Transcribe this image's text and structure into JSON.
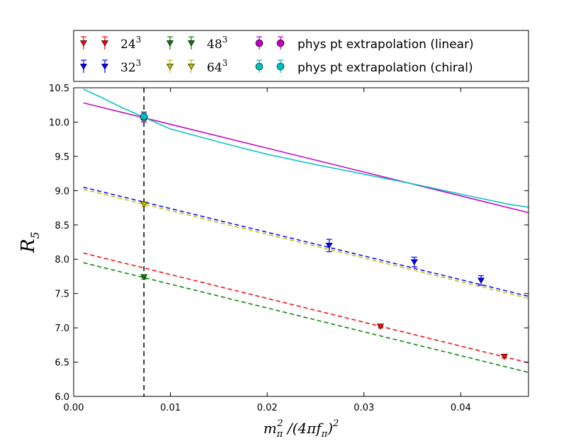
{
  "chart_data": {
    "type": "scatter",
    "title": "",
    "xlabel": "m_π² / (4π f_π)²",
    "ylabel": "R_5",
    "xlabel_parts": {
      "m": "m",
      "m_sub": "π",
      "m_sup": "2",
      "mid": " /(4π",
      "f": "f",
      "f_sub": "π",
      "close": ")",
      "close_sup": "2"
    },
    "ylabel_parts": {
      "R": "R",
      "R_sub": "5"
    },
    "xlim": [
      0.0,
      0.047
    ],
    "ylim": [
      6.0,
      10.5
    ],
    "xticks": [
      0.0,
      0.01,
      0.02,
      0.03,
      0.04
    ],
    "xtick_labels": [
      "0.00",
      "0.01",
      "0.02",
      "0.03",
      "0.04"
    ],
    "yticks": [
      6.0,
      6.5,
      7.0,
      7.5,
      8.0,
      8.5,
      9.0,
      9.5,
      10.0,
      10.5
    ],
    "ytick_labels": [
      "6.0",
      "6.5",
      "7.0",
      "7.5",
      "8.0",
      "8.5",
      "9.0",
      "9.5",
      "10.0",
      "10.5"
    ],
    "physical_point_x": 0.00726,
    "legend": {
      "position": "top, outside plot",
      "entries": [
        {
          "key": "24",
          "base": "24",
          "sup": "3",
          "color": "#ff0000",
          "marker": "triangle-down",
          "style": "math"
        },
        {
          "key": "32",
          "base": "32",
          "sup": "3",
          "color": "#0000ff",
          "marker": "triangle-down",
          "style": "math"
        },
        {
          "key": "48",
          "base": "48",
          "sup": "3",
          "color": "#008000",
          "marker": "triangle-down",
          "style": "math"
        },
        {
          "key": "64",
          "base": "64",
          "sup": "3",
          "color": "#bfbf00",
          "marker": "triangle-down",
          "style": "math"
        },
        {
          "key": "lin",
          "label": "phys pt extrapolation (linear)",
          "color": "#bf00bf",
          "marker": "circle",
          "style": "plain"
        },
        {
          "key": "chi",
          "label": "phys pt extrapolation (chiral)",
          "color": "#00bfbf",
          "marker": "circle",
          "style": "plain"
        }
      ]
    },
    "series": [
      {
        "name": "24^3",
        "color": "#ff0000",
        "marker": "triangle-down",
        "points": [
          {
            "x": 0.0317,
            "y": 7.02,
            "err": 0.02
          },
          {
            "x": 0.0445,
            "y": 6.58,
            "err": 0.02
          }
        ]
      },
      {
        "name": "32^3",
        "color": "#0000ff",
        "marker": "triangle-down",
        "points": [
          {
            "x": 0.0264,
            "y": 8.2,
            "err": 0.09
          },
          {
            "x": 0.0352,
            "y": 7.96,
            "err": 0.07
          },
          {
            "x": 0.0421,
            "y": 7.69,
            "err": 0.07
          }
        ]
      },
      {
        "name": "48^3",
        "color": "#008000",
        "marker": "triangle-down",
        "points": [
          {
            "x": 0.00726,
            "y": 7.74,
            "err": 0.03
          }
        ]
      },
      {
        "name": "64^3",
        "color": "#bfbf00",
        "marker": "triangle-down",
        "points": [
          {
            "x": 0.00726,
            "y": 8.8,
            "err": 0.03
          }
        ]
      },
      {
        "name": "phys pt extrapolation (linear)",
        "color": "#bf00bf",
        "marker": "circle",
        "points": [
          {
            "x": 0.00726,
            "y": 10.07,
            "err": 0.07
          }
        ]
      },
      {
        "name": "phys pt extrapolation (chiral)",
        "color": "#00bfbf",
        "marker": "circle",
        "points": [
          {
            "x": 0.00726,
            "y": 10.08,
            "err": 0.07
          }
        ]
      }
    ],
    "fit_lines": [
      {
        "name": "32^3 fit",
        "color": "#0000ff",
        "dashed": true,
        "x": [
          0.001,
          0.047
        ],
        "y": [
          9.05,
          7.46
        ]
      },
      {
        "name": "64^3 fit",
        "color": "#bfbf00",
        "dashed": true,
        "x": [
          0.001,
          0.047
        ],
        "y": [
          9.02,
          7.43
        ]
      },
      {
        "name": "24^3 fit",
        "color": "#ff0000",
        "dashed": true,
        "x": [
          0.001,
          0.047
        ],
        "y": [
          8.09,
          6.49
        ]
      },
      {
        "name": "48^3 fit",
        "color": "#008000",
        "dashed": true,
        "x": [
          0.001,
          0.047
        ],
        "y": [
          7.95,
          6.35
        ]
      },
      {
        "name": "linear extrapolation",
        "color": "#bf00bf",
        "dashed": false,
        "x": [
          0.001,
          0.047
        ],
        "y": [
          10.28,
          8.68
        ]
      }
    ],
    "chiral_curve": {
      "name": "chiral extrapolation",
      "color": "#00bfbf",
      "x": [
        0.001,
        0.003,
        0.005,
        0.00726,
        0.01,
        0.015,
        0.02,
        0.025,
        0.03,
        0.035,
        0.04,
        0.045,
        0.047
      ],
      "y": [
        10.48,
        10.35,
        10.21,
        10.07,
        9.9,
        9.71,
        9.53,
        9.38,
        9.24,
        9.1,
        8.95,
        8.8,
        8.76
      ]
    }
  }
}
